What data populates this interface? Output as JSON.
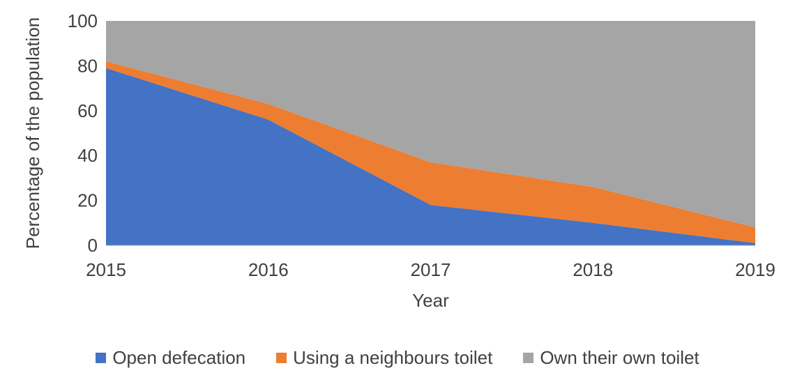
{
  "chart_data": {
    "type": "area",
    "stacked": true,
    "title": "",
    "xlabel": "Year",
    "ylabel": "Percentage of the population",
    "x": [
      2015,
      2016,
      2017,
      2018,
      2019
    ],
    "series": [
      {
        "name": "Open defecation",
        "color": "#4472C4",
        "values": [
          79,
          56,
          18,
          10,
          1
        ]
      },
      {
        "name": "Using a neighbours toilet",
        "color": "#ED7D31",
        "values": [
          3,
          7,
          19,
          16,
          7
        ]
      },
      {
        "name": "Own their own toilet",
        "color": "#A5A5A5",
        "values": [
          18,
          37,
          63,
          74,
          92
        ]
      }
    ],
    "ylim": [
      0,
      100
    ],
    "yticks": [
      0,
      20,
      40,
      60,
      80,
      100
    ],
    "grid": false,
    "legend_position": "bottom",
    "axis_line_color": "#9b9b9b",
    "text_color": "#404040"
  }
}
